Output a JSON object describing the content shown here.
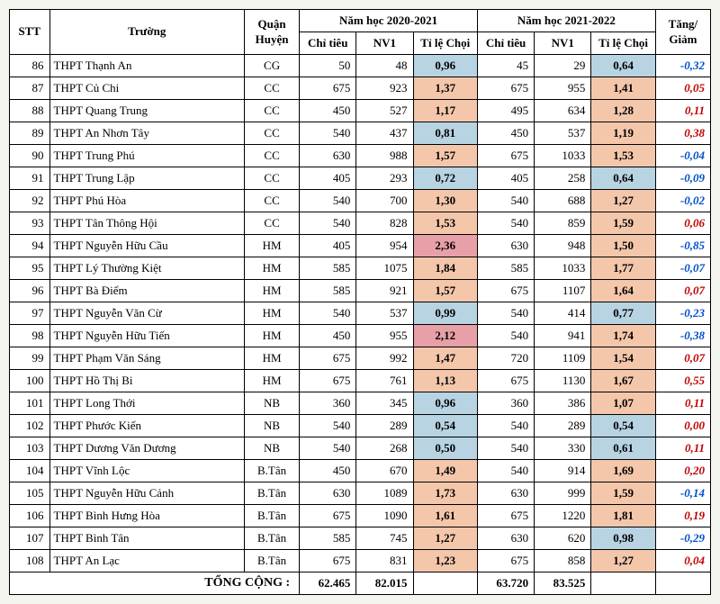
{
  "header": {
    "stt": "STT",
    "school": "Trường",
    "district": "Quận Huyện",
    "year1": "Năm học 2020-2021",
    "year2": "Năm học 2021-2022",
    "chitieu": "Chỉ tiêu",
    "nv1": "NV1",
    "ratio": "Tỉ lệ Chọi",
    "delta": "Tăng/ Giảm",
    "total_label": "TỔNG CỘNG :"
  },
  "style": {
    "blue_bg": "#b8d4e3",
    "peach_bg": "#f4c7ab",
    "pink_bg": "#e8a0a8",
    "blue_txt": "#0050c8",
    "red_txt": "#c00000",
    "border": "#000000",
    "font": "Times New Roman"
  },
  "rows": [
    {
      "stt": 86,
      "school": "THPT Thạnh An",
      "dist": "CG",
      "ct1": 50,
      "nv1_1": 48,
      "r1": "0,96",
      "r1c": "blue",
      "ct2": 45,
      "nv1_2": 29,
      "r2": "0,64",
      "r2c": "blue",
      "d": "-0,32",
      "dc": "blue"
    },
    {
      "stt": 87,
      "school": "THPT Củ Chi",
      "dist": "CC",
      "ct1": 675,
      "nv1_1": 923,
      "r1": "1,37",
      "r1c": "peach",
      "ct2": 675,
      "nv1_2": 955,
      "r2": "1,41",
      "r2c": "peach",
      "d": "0,05",
      "dc": "red"
    },
    {
      "stt": 88,
      "school": "THPT Quang Trung",
      "dist": "CC",
      "ct1": 450,
      "nv1_1": 527,
      "r1": "1,17",
      "r1c": "peach",
      "ct2": 495,
      "nv1_2": 634,
      "r2": "1,28",
      "r2c": "peach",
      "d": "0,11",
      "dc": "red"
    },
    {
      "stt": 89,
      "school": "THPT An Nhơn Tây",
      "dist": "CC",
      "ct1": 540,
      "nv1_1": 437,
      "r1": "0,81",
      "r1c": "blue",
      "ct2": 450,
      "nv1_2": 537,
      "r2": "1,19",
      "r2c": "peach",
      "d": "0,38",
      "dc": "red"
    },
    {
      "stt": 90,
      "school": "THPT Trung Phú",
      "dist": "CC",
      "ct1": 630,
      "nv1_1": 988,
      "r1": "1,57",
      "r1c": "peach",
      "ct2": 675,
      "nv1_2": 1033,
      "r2": "1,53",
      "r2c": "peach",
      "d": "-0,04",
      "dc": "blue"
    },
    {
      "stt": 91,
      "school": "THPT Trung Lập",
      "dist": "CC",
      "ct1": 405,
      "nv1_1": 293,
      "r1": "0,72",
      "r1c": "blue",
      "ct2": 405,
      "nv1_2": 258,
      "r2": "0,64",
      "r2c": "blue",
      "d": "-0,09",
      "dc": "blue"
    },
    {
      "stt": 92,
      "school": "THPT Phú Hòa",
      "dist": "CC",
      "ct1": 540,
      "nv1_1": 700,
      "r1": "1,30",
      "r1c": "peach",
      "ct2": 540,
      "nv1_2": 688,
      "r2": "1,27",
      "r2c": "peach",
      "d": "-0,02",
      "dc": "blue"
    },
    {
      "stt": 93,
      "school": "THPT Tân Thông Hội",
      "dist": "CC",
      "ct1": 540,
      "nv1_1": 828,
      "r1": "1,53",
      "r1c": "peach",
      "ct2": 540,
      "nv1_2": 859,
      "r2": "1,59",
      "r2c": "peach",
      "d": "0,06",
      "dc": "red"
    },
    {
      "stt": 94,
      "school": "THPT Nguyễn Hữu Cầu",
      "dist": "HM",
      "ct1": 405,
      "nv1_1": 954,
      "r1": "2,36",
      "r1c": "pink",
      "ct2": 630,
      "nv1_2": 948,
      "r2": "1,50",
      "r2c": "peach",
      "d": "-0,85",
      "dc": "blue"
    },
    {
      "stt": 95,
      "school": "THPT Lý Thường Kiệt",
      "dist": "HM",
      "ct1": 585,
      "nv1_1": 1075,
      "r1": "1,84",
      "r1c": "peach",
      "ct2": 585,
      "nv1_2": 1033,
      "r2": "1,77",
      "r2c": "peach",
      "d": "-0,07",
      "dc": "blue"
    },
    {
      "stt": 96,
      "school": "THPT Bà Điểm",
      "dist": "HM",
      "ct1": 585,
      "nv1_1": 921,
      "r1": "1,57",
      "r1c": "peach",
      "ct2": 675,
      "nv1_2": 1107,
      "r2": "1,64",
      "r2c": "peach",
      "d": "0,07",
      "dc": "red"
    },
    {
      "stt": 97,
      "school": "THPT Nguyễn Văn Cừ",
      "dist": "HM",
      "ct1": 540,
      "nv1_1": 537,
      "r1": "0,99",
      "r1c": "blue",
      "ct2": 540,
      "nv1_2": 414,
      "r2": "0,77",
      "r2c": "blue",
      "d": "-0,23",
      "dc": "blue"
    },
    {
      "stt": 98,
      "school": "THPT Nguyễn Hữu Tiến",
      "dist": "HM",
      "ct1": 450,
      "nv1_1": 955,
      "r1": "2,12",
      "r1c": "pink",
      "ct2": 540,
      "nv1_2": 941,
      "r2": "1,74",
      "r2c": "peach",
      "d": "-0,38",
      "dc": "blue"
    },
    {
      "stt": 99,
      "school": "THPT Phạm Văn Sáng",
      "dist": "HM",
      "ct1": 675,
      "nv1_1": 992,
      "r1": "1,47",
      "r1c": "peach",
      "ct2": 720,
      "nv1_2": 1109,
      "r2": "1,54",
      "r2c": "peach",
      "d": "0,07",
      "dc": "red"
    },
    {
      "stt": 100,
      "school": "THPT Hồ Thị Bi",
      "dist": "HM",
      "ct1": 675,
      "nv1_1": 761,
      "r1": "1,13",
      "r1c": "peach",
      "ct2": 675,
      "nv1_2": 1130,
      "r2": "1,67",
      "r2c": "peach",
      "d": "0,55",
      "dc": "red"
    },
    {
      "stt": 101,
      "school": "THPT Long Thới",
      "dist": "NB",
      "ct1": 360,
      "nv1_1": 345,
      "r1": "0,96",
      "r1c": "blue",
      "ct2": 360,
      "nv1_2": 386,
      "r2": "1,07",
      "r2c": "peach",
      "d": "0,11",
      "dc": "red"
    },
    {
      "stt": 102,
      "school": "THPT Phước Kiển",
      "dist": "NB",
      "ct1": 540,
      "nv1_1": 289,
      "r1": "0,54",
      "r1c": "blue",
      "ct2": 540,
      "nv1_2": 289,
      "r2": "0,54",
      "r2c": "blue",
      "d": "0,00",
      "dc": "red"
    },
    {
      "stt": 103,
      "school": "THPT Dương Văn Dương",
      "dist": "NB",
      "ct1": 540,
      "nv1_1": 268,
      "r1": "0,50",
      "r1c": "blue",
      "ct2": 540,
      "nv1_2": 330,
      "r2": "0,61",
      "r2c": "blue",
      "d": "0,11",
      "dc": "red"
    },
    {
      "stt": 104,
      "school": "THPT Vĩnh Lộc",
      "dist": "B.Tân",
      "ct1": 450,
      "nv1_1": 670,
      "r1": "1,49",
      "r1c": "peach",
      "ct2": 540,
      "nv1_2": 914,
      "r2": "1,69",
      "r2c": "peach",
      "d": "0,20",
      "dc": "red"
    },
    {
      "stt": 105,
      "school": "THPT Nguyễn Hữu Cảnh",
      "dist": "B.Tân",
      "ct1": 630,
      "nv1_1": 1089,
      "r1": "1,73",
      "r1c": "peach",
      "ct2": 630,
      "nv1_2": 999,
      "r2": "1,59",
      "r2c": "peach",
      "d": "-0,14",
      "dc": "blue"
    },
    {
      "stt": 106,
      "school": "THPT Bình Hưng Hòa",
      "dist": "B.Tân",
      "ct1": 675,
      "nv1_1": 1090,
      "r1": "1,61",
      "r1c": "peach",
      "ct2": 675,
      "nv1_2": 1220,
      "r2": "1,81",
      "r2c": "peach",
      "d": "0,19",
      "dc": "red"
    },
    {
      "stt": 107,
      "school": "THPT Bình Tân",
      "dist": "B.Tân",
      "ct1": 585,
      "nv1_1": 745,
      "r1": "1,27",
      "r1c": "peach",
      "ct2": 630,
      "nv1_2": 620,
      "r2": "0,98",
      "r2c": "blue",
      "d": "-0,29",
      "dc": "blue"
    },
    {
      "stt": 108,
      "school": "THPT An Lạc",
      "dist": "B.Tân",
      "ct1": 675,
      "nv1_1": 831,
      "r1": "1,23",
      "r1c": "peach",
      "ct2": 675,
      "nv1_2": 858,
      "r2": "1,27",
      "r2c": "peach",
      "d": "0,04",
      "dc": "red"
    }
  ],
  "totals": {
    "ct1": "62.465",
    "nv1_1": "82.015",
    "ct2": "63.720",
    "nv1_2": "83.525"
  }
}
